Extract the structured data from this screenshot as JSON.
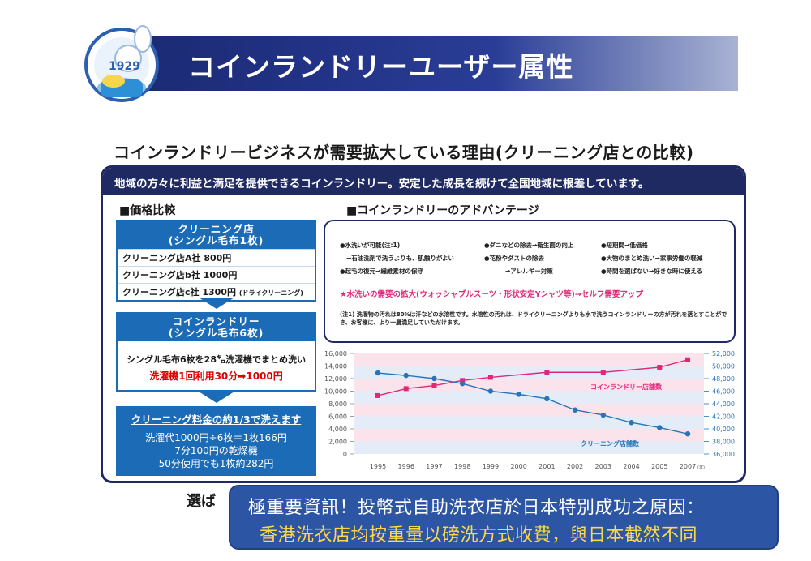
{
  "header": {
    "title": "コインランドリーユーザー属性"
  },
  "mascot": {
    "badge_text": "1929",
    "icon": "mascot-logo-icon"
  },
  "subtitle": "コインランドリービジネスが需要拡大している理由(クリーニング店との比較)",
  "panel": {
    "header_text": "地域の方々に利益と満足を提供できるコインランドリー。安定した成長を続けて全国地域に根差しています。",
    "price_section": {
      "title": "■価格比較",
      "cleaning_card": {
        "head_line1": "クリーニング店",
        "head_line2": "(シングル毛布1枚)",
        "rows": [
          {
            "text": "クリーニング店A社 800円",
            "note": ""
          },
          {
            "text": "クリーニング店b社 1000円",
            "note": ""
          },
          {
            "text": "クリーニング店c社 1300円",
            "note": "(ドライクリーニング)"
          }
        ]
      },
      "laundry_card": {
        "head_line1": "コインランドリー",
        "head_line2": "(シングル毛布6枚)",
        "line1": "シングル毛布6枚を28㌔洗濯機でまとめ洗い",
        "line2": "洗濯機1回利用30分➡1000円"
      },
      "summary": {
        "title": "クリーニング料金の約1/3で洗えます",
        "lines": [
          "洗濯代1000円÷6枚＝1枚166円",
          "7分100円の乾燥機",
          "50分使用でも1枚約282円"
        ]
      }
    },
    "advantage_section": {
      "title": "■コインランドリーのアドバンテージ",
      "items": [
        "●水洗いが可能(注:1)",
        "→石油洗剤で洗うよりも、肌触りがよい",
        "●起毛の復元→繊維素材の保守",
        "●ダニなどの除去→衛生面の向上",
        "●花粉やダストの除去",
        "→アレルギー対策",
        "●短期間→低価格",
        "●大物のまとめ洗い→家事労働の軽減",
        "●時間を選ばない→好きな時に使える"
      ],
      "highlight": "★水洗いの需要の拡大(ウォッシャブルスーツ・形状安定Yシャツ等)→セルフ需要アップ",
      "note": "(注1) 洗濯物の汚れは80%は汗などの水溶性です。水溶性の汚れは、ドライクリーニングよりも水で洗うコインランドリーの方が汚れを落とすことができ、お客様に、より一層満足していただけます。"
    }
  },
  "chart_data": {
    "type": "line",
    "x": [
      "1995",
      "1996",
      "1997",
      "1998",
      "1999",
      "2000",
      "2001",
      "2002",
      "2003",
      "2004",
      "2005",
      "2007"
    ],
    "x_suffix": "(年)",
    "left_axis": {
      "ticks": [
        "16,000",
        "14,000",
        "12,000",
        "10,000",
        "8,000",
        "6,000",
        "4,000",
        "2,000",
        "0"
      ],
      "ylim": [
        0,
        16000
      ]
    },
    "right_axis": {
      "ticks": [
        "52,000",
        "50,000",
        "48,000",
        "46,000",
        "44,000",
        "42,000",
        "40,000",
        "38,000",
        "36,000"
      ],
      "ylim": [
        36000,
        52000
      ]
    },
    "series": [
      {
        "name": "コインランドリー店舗数",
        "axis": "left",
        "values": [
          null,
          null,
          null,
          11700,
          12200,
          null,
          13000,
          null,
          13000,
          null,
          13800,
          15000
        ],
        "points_x": [
          "1995",
          "1996",
          "1997",
          "1998",
          "1999",
          "2001",
          "2003",
          "2005",
          "2007"
        ],
        "points_y": [
          9300,
          10400,
          10900,
          11700,
          12200,
          13000,
          13000,
          13800,
          15000
        ],
        "color": "#e0287a"
      },
      {
        "name": "クリーニング店舗数",
        "axis": "right",
        "points_x": [
          "1995",
          "1996",
          "1997",
          "1998",
          "1999",
          "2000",
          "2001",
          "2002",
          "2003",
          "2004",
          "2005",
          "2007"
        ],
        "points_y": [
          48900,
          48500,
          48000,
          47200,
          46000,
          45500,
          44800,
          43000,
          42200,
          41000,
          40200,
          39200
        ],
        "color": "#2874b9"
      }
    ],
    "grid": true,
    "band_colors": [
      "#fbe3ec",
      "#e3ecf7"
    ]
  },
  "bottom": {
    "select_label": "選ば",
    "callout_line1": "極重要資訊！投幣式自助洗衣店於日本特別成功之原因：",
    "callout_line2": "香港洗衣店均按重量以磅洗方式收費，與日本截然不同"
  }
}
